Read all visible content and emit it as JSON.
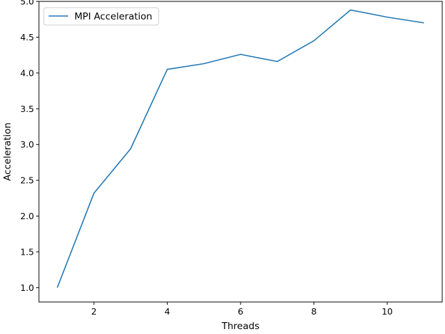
{
  "chart_data": {
    "type": "line",
    "xlabel": "Threads",
    "ylabel": "Acceleration",
    "xlim": [
      0.5,
      11.5
    ],
    "ylim": [
      0.8,
      5.0
    ],
    "xticks": [
      2,
      4,
      6,
      8,
      10
    ],
    "xtick_labels": [
      "2",
      "4",
      "6",
      "8",
      "10"
    ],
    "yticks": [
      1.0,
      1.5,
      2.0,
      2.5,
      3.0,
      3.5,
      4.0,
      4.5,
      5.0
    ],
    "ytick_labels": [
      "1.0",
      "1.5",
      "2.0",
      "2.5",
      "3.0",
      "3.5",
      "4.0",
      "4.5",
      "5.0"
    ],
    "grid": false,
    "legend_position": "top-left",
    "series": [
      {
        "name": "MPI Acceleration",
        "color": "#1f77b4",
        "x": [
          1,
          2,
          3,
          4,
          5,
          6,
          7,
          8,
          9,
          10,
          11
        ],
        "y": [
          1.0,
          2.32,
          2.94,
          4.05,
          4.13,
          4.26,
          4.16,
          4.45,
          4.88,
          4.78,
          4.7
        ]
      }
    ]
  }
}
